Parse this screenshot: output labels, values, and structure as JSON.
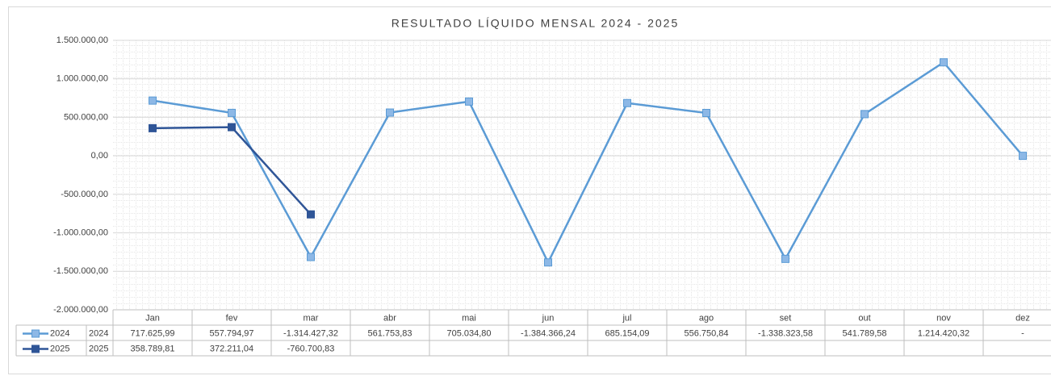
{
  "chart_data": {
    "type": "line",
    "title": "RESULTADO LÍQUIDO MENSAL 2024 - 2025",
    "categories": [
      "Jan",
      "fev",
      "mar",
      "abr",
      "mai",
      "jun",
      "jul",
      "ago",
      "set",
      "out",
      "nov",
      "dez"
    ],
    "series": [
      {
        "name": "2024",
        "color": "#5b9bd5",
        "marker_color": "#8db8e6",
        "values": [
          717625.99,
          557794.97,
          -1314427.32,
          561753.83,
          705034.8,
          -1384366.24,
          685154.09,
          556750.84,
          -1338323.58,
          541789.58,
          1214420.32,
          0
        ],
        "value_labels": [
          "717.625,99",
          "557.794,97",
          "-1.314.427,32",
          "561.753,83",
          "705.034,80",
          "-1.384.366,24",
          "685.154,09",
          "556.750,84",
          "-1.338.323,58",
          "541.789,58",
          "1.214.420,32",
          "-"
        ]
      },
      {
        "name": "2025",
        "color": "#2f5597",
        "marker_color": "#2f5597",
        "values": [
          358789.81,
          372211.04,
          -760700.83,
          null,
          null,
          null,
          null,
          null,
          null,
          null,
          null,
          null
        ],
        "value_labels": [
          "358.789,81",
          "372.211,04",
          "-760.700,83",
          null,
          null,
          null,
          null,
          null,
          null,
          null,
          null,
          null
        ]
      }
    ],
    "ylim": [
      -2000000,
      1500000
    ],
    "yticks": [
      {
        "value": -2000000,
        "label": "-2.000.000,00"
      },
      {
        "value": -1500000,
        "label": "-1.500.000,00"
      },
      {
        "value": -1000000,
        "label": "-1.000.000,00"
      },
      {
        "value": -500000,
        "label": "-500.000,00"
      },
      {
        "value": 0,
        "label": "0,00"
      },
      {
        "value": 500000,
        "label": "500.000,00"
      },
      {
        "value": 1000000,
        "label": "1.000.000,00"
      },
      {
        "value": 1500000,
        "label": "1.500.000,00"
      }
    ],
    "grid": true
  }
}
